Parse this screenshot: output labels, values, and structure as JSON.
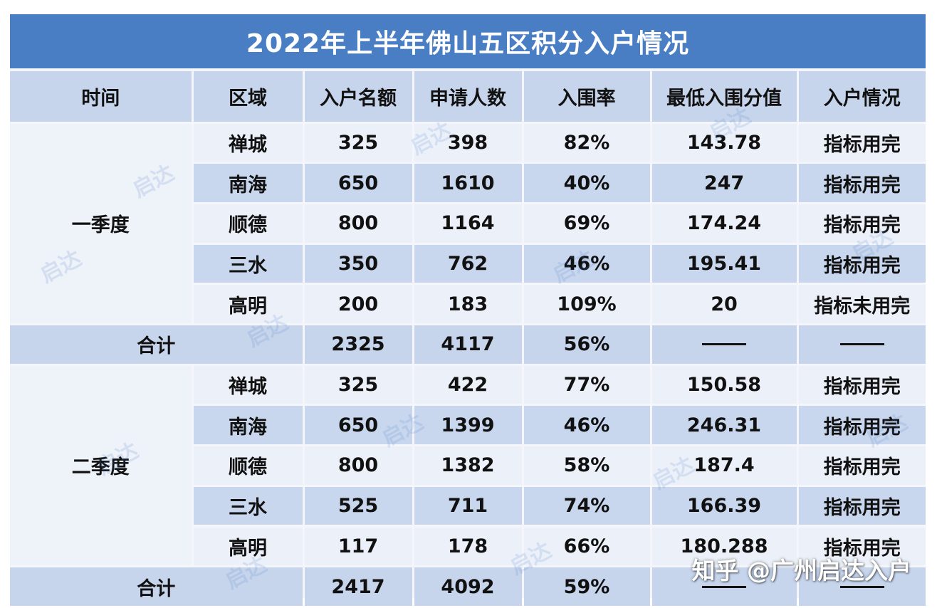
{
  "title": "2022年上半年佛山五区积分入户情况",
  "headers": [
    "时间",
    "区域",
    "入户名额",
    "申请人数",
    "入围率",
    "最低入围分值",
    "入户情况"
  ],
  "quarters": [
    {
      "name": "一季度",
      "rows": [
        {
          "district": "禅城",
          "quota": "325",
          "applicants": "398",
          "rate": "82%",
          "min_score": "143.78",
          "status": "指标用完"
        },
        {
          "district": "南海",
          "quota": "650",
          "applicants": "1610",
          "rate": "40%",
          "min_score": "247",
          "status": "指标用完"
        },
        {
          "district": "顺德",
          "quota": "800",
          "applicants": "1164",
          "rate": "69%",
          "min_score": "174.24",
          "status": "指标用完"
        },
        {
          "district": "三水",
          "quota": "350",
          "applicants": "762",
          "rate": "46%",
          "min_score": "195.41",
          "status": "指标用完"
        },
        {
          "district": "高明",
          "quota": "200",
          "applicants": "183",
          "rate": "109%",
          "min_score": "20",
          "status": "指标未用完"
        }
      ],
      "total": {
        "label": "合计",
        "quota": "2325",
        "applicants": "4117",
        "rate": "56%"
      }
    },
    {
      "name": "二季度",
      "rows": [
        {
          "district": "禅城",
          "quota": "325",
          "applicants": "422",
          "rate": "77%",
          "min_score": "150.58",
          "status": "指标用完"
        },
        {
          "district": "南海",
          "quota": "650",
          "applicants": "1399",
          "rate": "46%",
          "min_score": "246.31",
          "status": "指标用完"
        },
        {
          "district": "顺德",
          "quota": "800",
          "applicants": "1382",
          "rate": "58%",
          "min_score": "187.4",
          "status": "指标用完"
        },
        {
          "district": "三水",
          "quota": "525",
          "applicants": "711",
          "rate": "74%",
          "min_score": "166.39",
          "status": "指标用完"
        },
        {
          "district": "高明",
          "quota": "117",
          "applicants": "178",
          "rate": "66%",
          "min_score": "180.288",
          "status": "指标用完"
        }
      ],
      "total": {
        "label": "合计",
        "quota": "2417",
        "applicants": "4092",
        "rate": "59%"
      }
    }
  ],
  "watermark_text": "启达",
  "source_credit": "知乎 @广州启达入户",
  "colors": {
    "title_bar": "#4a7ec4",
    "header": "#c6d5ec",
    "row_dark": "#c9d7ee",
    "row_light": "#ecf1f9"
  }
}
